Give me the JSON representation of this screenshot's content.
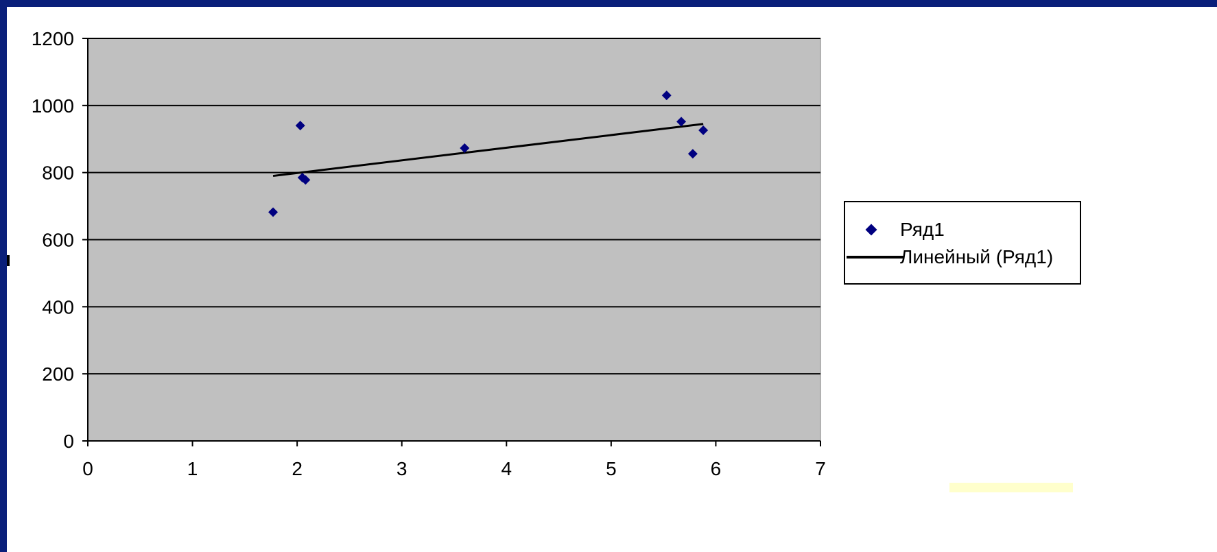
{
  "chart_data": {
    "type": "scatter",
    "title": "",
    "xlabel": "",
    "ylabel": "",
    "xlim": [
      0,
      7
    ],
    "ylim": [
      0,
      1200
    ],
    "x_ticks": [
      "0",
      "1",
      "2",
      "3",
      "4",
      "5",
      "6",
      "7"
    ],
    "y_ticks": [
      "0",
      "200",
      "400",
      "600",
      "800",
      "1000",
      "1200"
    ],
    "grid": "horizontal",
    "plot_background": "#c0c0c0",
    "legend_position": "right",
    "series": [
      {
        "name": "Ряд1",
        "color": "#000080",
        "marker": "diamond",
        "points": [
          {
            "x": 1.77,
            "y": 682
          },
          {
            "x": 2.03,
            "y": 940
          },
          {
            "x": 2.05,
            "y": 785
          },
          {
            "x": 2.08,
            "y": 778
          },
          {
            "x": 3.6,
            "y": 873
          },
          {
            "x": 5.53,
            "y": 1030
          },
          {
            "x": 5.67,
            "y": 952
          },
          {
            "x": 5.78,
            "y": 856
          },
          {
            "x": 5.88,
            "y": 926
          }
        ]
      }
    ],
    "trendline": {
      "name": "Линейный (Ряд1)",
      "color": "#000000",
      "type": "linear",
      "x_range": [
        1.77,
        5.88
      ],
      "y_range": [
        790,
        945
      ]
    }
  }
}
